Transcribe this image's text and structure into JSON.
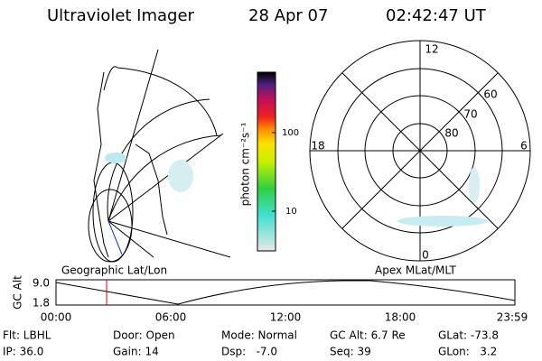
{
  "header": {
    "instrument": "Ultraviolet Imager",
    "date": "28 Apr 07",
    "time": "02:42:47 UT"
  },
  "colorbar": {
    "label": "photon cm⁻²s⁻¹",
    "ticks": [
      "100",
      "10"
    ]
  },
  "polar_plot": {
    "mlt_labels": [
      "12",
      "18",
      "6",
      "0"
    ],
    "mlat_labels": [
      "60",
      "70",
      "80"
    ]
  },
  "map_labels": {
    "left": "Geographic Lat/Lon",
    "right": "Apex MLat/MLT"
  },
  "timeline": {
    "axis_label": "GC Alt",
    "y_labels": [
      "9.0",
      "1.8"
    ],
    "x_labels": [
      "00:00",
      "06:00",
      "12:00",
      "18:00",
      "23:59"
    ]
  },
  "footer": {
    "rows": [
      [
        "Flt: LBHL",
        "Door: Open",
        "Mode: Normal",
        "GC Alt: 6.7 Re",
        "GLat: -73.8"
      ],
      [
        "IP: 36.0",
        "Gain: 14",
        "Dsp:   -7.0",
        "Seq: 39",
        "GLon:   3.2"
      ]
    ]
  }
}
